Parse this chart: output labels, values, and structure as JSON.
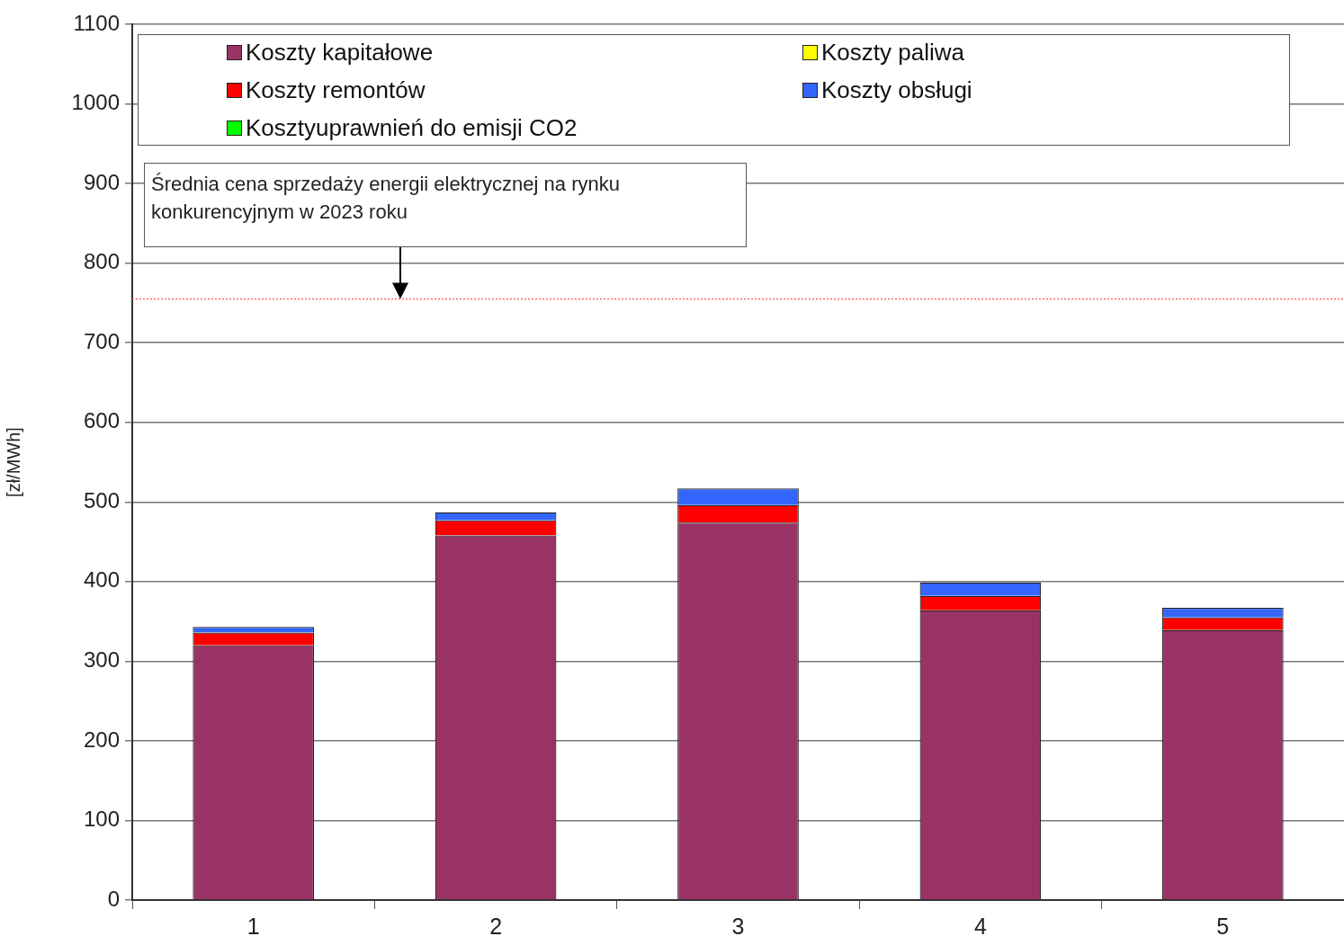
{
  "chart_data": {
    "type": "bar",
    "stacked": true,
    "ylabel": "[zł/MWh]",
    "categories": [
      "1",
      "2",
      "3",
      "4",
      "5"
    ],
    "series": [
      {
        "name": "Koszty kapitałowe",
        "color": "#993366",
        "values": [
          320,
          458,
          474,
          364,
          339
        ]
      },
      {
        "name": "Koszty paliwa",
        "color": "#ffff00",
        "values": [
          0,
          0,
          0,
          0,
          0
        ]
      },
      {
        "name": "Koszty remontów",
        "color": "#ff0000",
        "values": [
          16,
          19,
          22,
          18,
          16
        ]
      },
      {
        "name": "Koszty obsługi",
        "color": "#3366ff",
        "values": [
          7,
          10,
          21,
          17,
          12
        ]
      },
      {
        "name": "Kosztyuprawnień do emisji CO2",
        "color": "#00ff00",
        "values": [
          0,
          0,
          0,
          0,
          0
        ]
      }
    ],
    "ylim": [
      0,
      1100
    ],
    "yticks": [
      0,
      100,
      200,
      300,
      400,
      500,
      600,
      700,
      800,
      900,
      1000,
      1100
    ],
    "grid": "y",
    "legend": "top",
    "annotations": [
      "Średnia cena sprzedaży energii elektrycznej na rynku konkurencyjnym w 2023 roku"
    ],
    "ref_lines": [
      {
        "axis": "y",
        "value": 755,
        "color": "#ff6666",
        "line_style": "dotted"
      }
    ]
  }
}
